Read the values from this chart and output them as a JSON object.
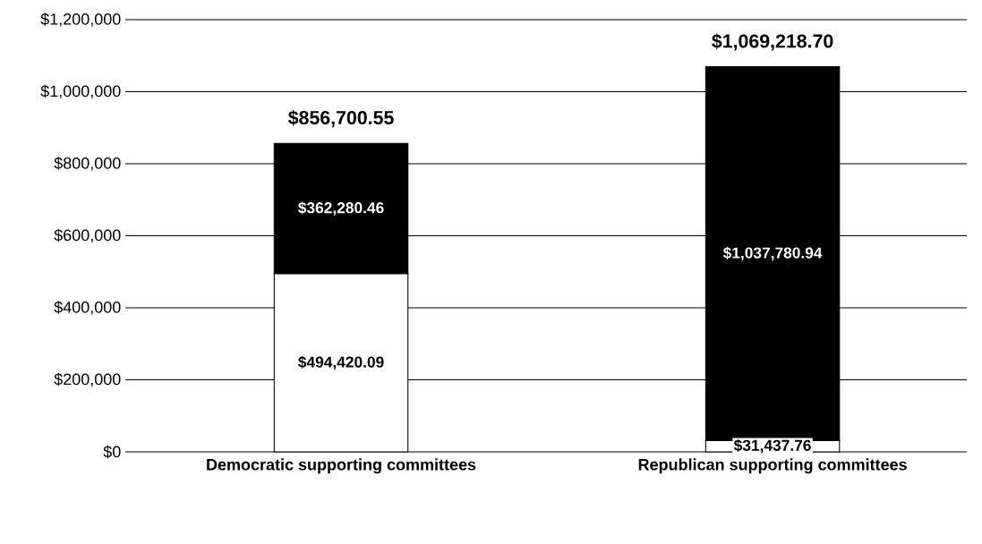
{
  "chart_data": {
    "type": "bar",
    "stacked": true,
    "categories": [
      "Democratic supporting committees",
      "Republican supporting committees"
    ],
    "series": [
      {
        "color": "#ffffff",
        "values": [
          494420.09,
          31437.76
        ],
        "value_labels": [
          "$494,420.09",
          "$31,437.76"
        ]
      },
      {
        "color": "#000000",
        "values": [
          362280.46,
          1037780.94
        ],
        "value_labels": [
          "$362,280.46",
          "$1,037,780.94"
        ]
      }
    ],
    "totals": [
      "$856,700.55",
      "$1,069,218.70"
    ],
    "ylim": [
      0,
      1200000
    ],
    "yticks": [
      {
        "value": 0,
        "label": "$0"
      },
      {
        "value": 200000,
        "label": "$200,000"
      },
      {
        "value": 400000,
        "label": "$400,000"
      },
      {
        "value": 600000,
        "label": "$600,000"
      },
      {
        "value": 800000,
        "label": "$800,000"
      },
      {
        "value": 1000000,
        "label": "$1,000,000"
      },
      {
        "value": 1200000,
        "label": "$1,200,000"
      }
    ],
    "grid": "y"
  }
}
